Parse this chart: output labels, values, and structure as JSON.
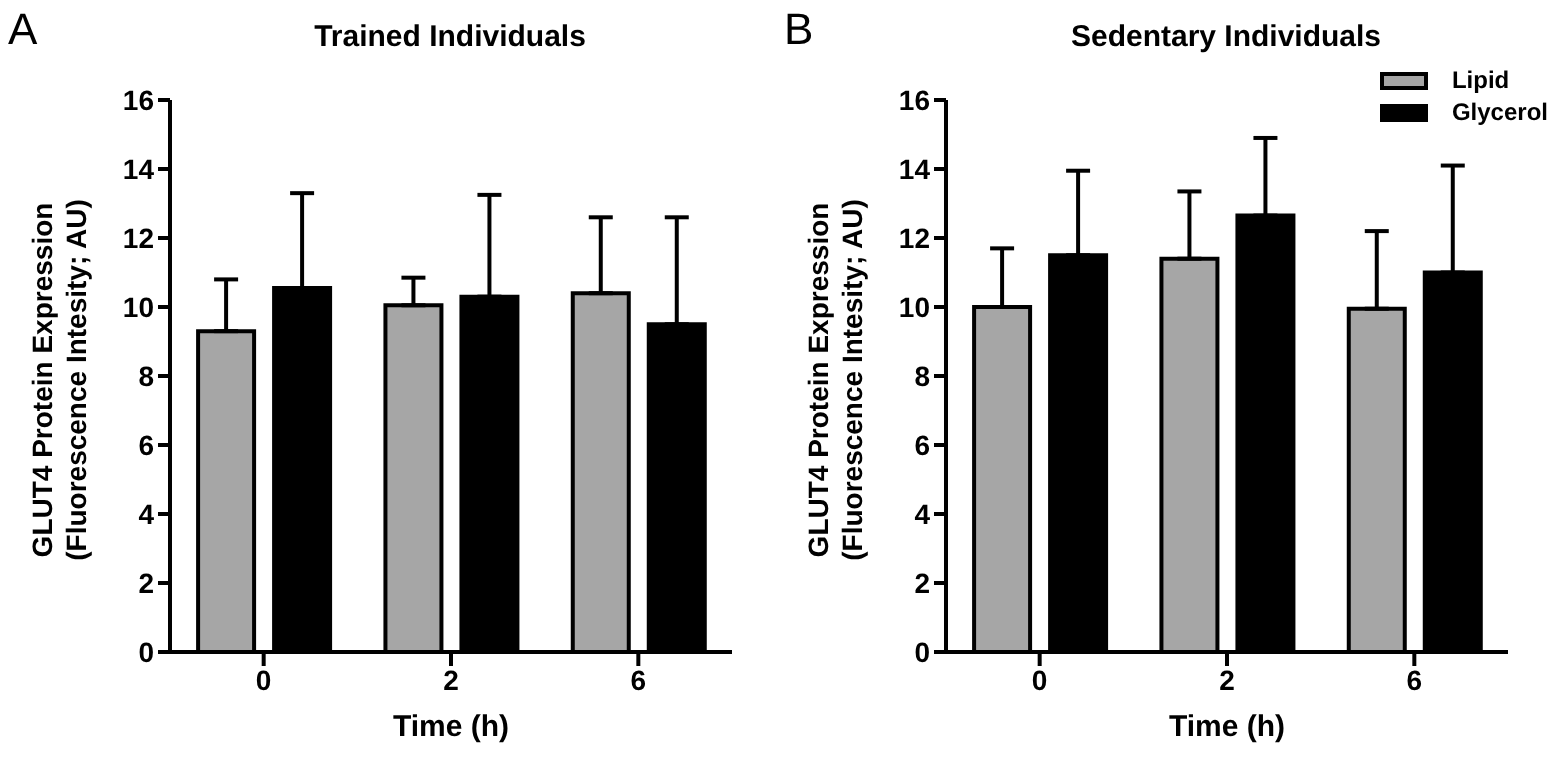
{
  "chart_data": [
    {
      "type": "bar",
      "title": "Trained Individuals",
      "xlabel": "Time (h)",
      "ylabel": "GLUT4 Protein Expression\n(Fluorescence Intesity; AU)",
      "annotations": [
        "A"
      ],
      "categories": [
        "0",
        "2",
        "6"
      ],
      "ylim": [
        0,
        16
      ],
      "yticks": [
        0,
        2,
        4,
        6,
        8,
        10,
        12,
        14,
        16
      ],
      "grid": false,
      "legend": false,
      "series": [
        {
          "color": "#a6a6a6",
          "values": [
            9.3,
            10.05,
            10.4
          ],
          "errors": [
            [
              9.3,
              10.8
            ],
            [
              10.05,
              10.85
            ],
            [
              10.4,
              12.6
            ]
          ]
        },
        {
          "color": "#000000",
          "values": [
            10.55,
            10.3,
            9.5
          ],
          "errors": [
            [
              10.55,
              13.3
            ],
            [
              10.3,
              13.25
            ],
            [
              9.5,
              12.6
            ]
          ]
        }
      ]
    },
    {
      "type": "bar",
      "title": "Sedentary Individuals",
      "xlabel": "Time (h)",
      "ylabel": "GLUT4 Protein Expression\n(Fluorescence Intesity; AU)",
      "annotations": [
        "B"
      ],
      "categories": [
        "0",
        "2",
        "6"
      ],
      "ylim": [
        0,
        16
      ],
      "yticks": [
        0,
        2,
        4,
        6,
        8,
        10,
        12,
        14,
        16
      ],
      "grid": false,
      "legend": "top right",
      "series": [
        {
          "name": "Lipid",
          "color": "#a6a6a6",
          "values": [
            10.0,
            11.4,
            9.95
          ],
          "errors": [
            [
              10.0,
              11.7
            ],
            [
              11.4,
              13.35
            ],
            [
              9.95,
              12.2
            ]
          ]
        },
        {
          "name": "Glycerol",
          "color": "#000000",
          "values": [
            11.5,
            12.65,
            11.0
          ],
          "errors": [
            [
              11.5,
              13.95
            ],
            [
              12.65,
              14.9
            ],
            [
              11.0,
              14.1
            ]
          ]
        }
      ]
    }
  ]
}
